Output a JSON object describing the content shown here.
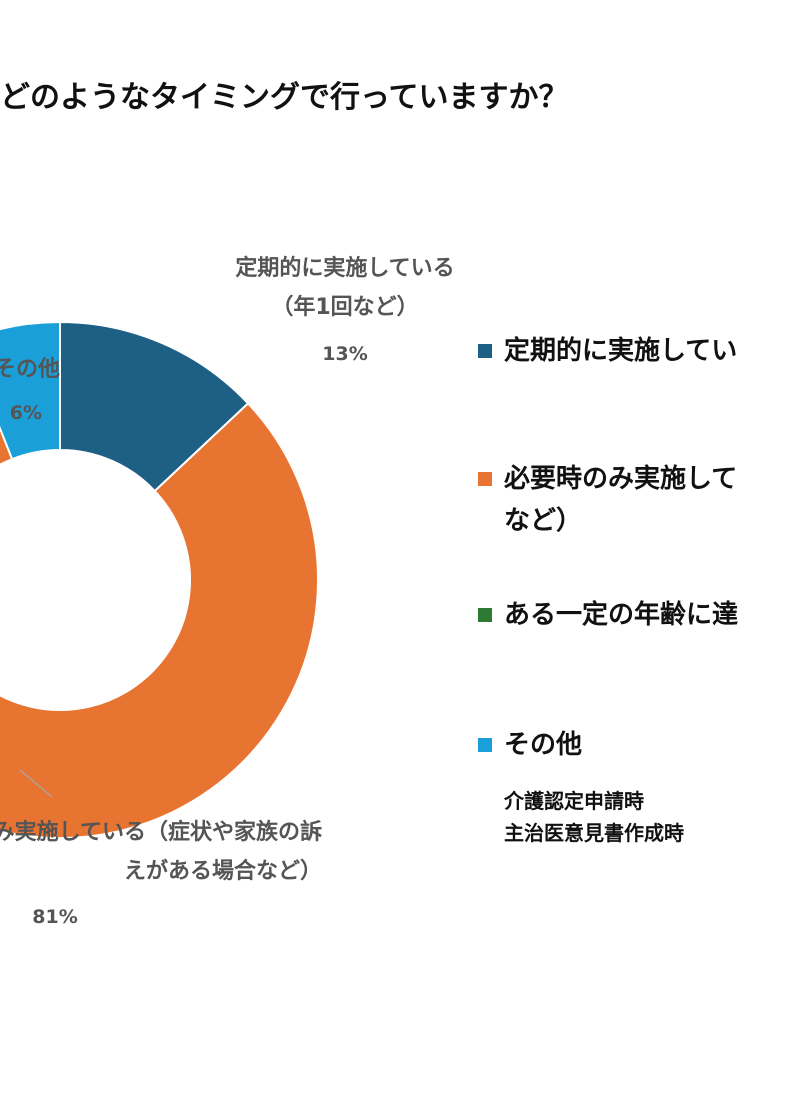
{
  "chart_data": {
    "type": "donut",
    "title": "どのようなタイミングで行っていますか？",
    "slices": [
      {
        "name": "定期的に実施している（年1回など）",
        "label_lines": [
          "定期的に実施している",
          "（年1回など）"
        ],
        "value": 13,
        "value_label": "13%",
        "color": "#1e5f86"
      },
      {
        "name": "必要時のみ実施している（症状や家族の訴えがある場合など）",
        "label_lines": [
          "必要時のみ実施している（症状や家族の訴",
          "えがある場合など）"
        ],
        "value": 81,
        "value_label": "81%",
        "color": "#e87431"
      },
      {
        "name": "ある一定の年齢に達したら実施している",
        "label_lines": [],
        "value": 0,
        "value_label": "",
        "color": "#2c7a33"
      },
      {
        "name": "その他",
        "label_lines": [
          "その他"
        ],
        "value": 6,
        "value_label": "6%",
        "color": "#1a9fd9"
      }
    ],
    "legend": {
      "items": [
        {
          "label": "定期的に実施してい",
          "color": "#1e5f86"
        },
        {
          "label": "必要時のみ実施して\nなど）",
          "color": "#e87431"
        },
        {
          "label": "ある一定の年齢に達",
          "color": "#2c7a33"
        },
        {
          "label": "その他",
          "color": "#1a9fd9"
        }
      ],
      "notes": [
        "介護認定申請時",
        "主治医意見書作成時"
      ]
    }
  }
}
